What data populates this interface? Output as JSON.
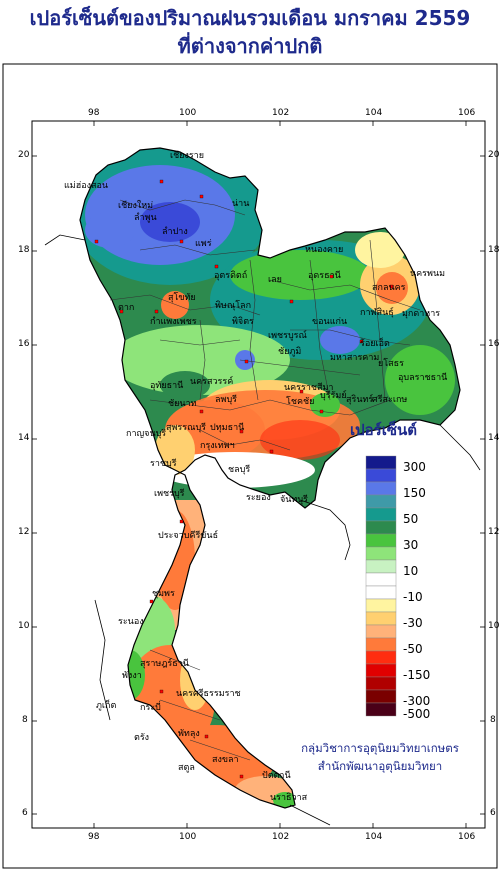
{
  "title_line1": "เปอร์เซ็นต์ของปริมาณฝนรวมเดือน มกราคม 2559",
  "title_line2": "ที่ต่างจากค่าปกติ",
  "axes": {
    "lon_ticks": [
      "98",
      "100",
      "102",
      "104",
      "106"
    ],
    "lat_ticks": [
      "20",
      "18",
      "16",
      "14",
      "12",
      "10",
      "8",
      "6"
    ]
  },
  "legend": {
    "title": "เปอร์เซ็นต์",
    "classes": [
      {
        "label": "300",
        "color": "#141a8c"
      },
      {
        "label": "",
        "color": "#3a4ad8"
      },
      {
        "label": "150",
        "color": "#5a78e8"
      },
      {
        "label": "",
        "color": "#3f9aa8"
      },
      {
        "label": "50",
        "color": "#159a8e"
      },
      {
        "label": "",
        "color": "#2d8a4e"
      },
      {
        "label": "30",
        "color": "#49c43e"
      },
      {
        "label": "",
        "color": "#8ee47a"
      },
      {
        "label": "10",
        "color": "#c8f2c2"
      },
      {
        "label": "",
        "color": "#ffffff"
      },
      {
        "label": "-10",
        "color": "#ffffff"
      },
      {
        "label": "",
        "color": "#fff4a0"
      },
      {
        "label": "-30",
        "color": "#ffd070"
      },
      {
        "label": "",
        "color": "#ffb27a"
      },
      {
        "label": "-50",
        "color": "#ff7a3a"
      },
      {
        "label": "",
        "color": "#ff2d10"
      },
      {
        "label": "-150",
        "color": "#e00000"
      },
      {
        "label": "",
        "color": "#b00000"
      },
      {
        "label": "-300",
        "color": "#7a0000"
      },
      {
        "label": "-500",
        "color": "#4a0018"
      }
    ]
  },
  "credits": {
    "line1": "กลุ่มวิชาการอุตุนิยมวิทยาเกษตร",
    "line2": "สำนักพัฒนาอุตุนิยมวิทยา"
  },
  "place_labels": [
    "เชียงราย",
    "แม่ฮ่องสอน",
    "เชียงใหม่",
    "ลำพูน",
    "ลำปาง",
    "น่าน",
    "แพร่",
    "อุตรดิตถ์",
    "สุโขทัย",
    "พิษณุโลก",
    "ตาก",
    "กำแพงเพชร",
    "พิจิตร",
    "เพชรบูรณ์",
    "เลย",
    "หนองคาย",
    "อุดรธานี",
    "สกลนคร",
    "นครพนม",
    "กาฬสินธุ์",
    "มุกดาหาร",
    "ขอนแก่น",
    "ชัยภูมิ",
    "มหาสารคาม",
    "ร้อยเอ็ด",
    "ยโสธร",
    "อุบลราชธานี",
    "นครสวรรค์",
    "อุทัยธานี",
    "ชัยนาท",
    "ลพบุรี",
    "นครราชสีมา",
    "บุรีรัมย์",
    "สุรินทร์",
    "ศรีสะเกษ",
    "โชคชัย",
    "กาญจนบุรี",
    "สุพรรณบุรี",
    "ปทุมธานี",
    "กรุงเทพฯ",
    "ชลบุรี",
    "ระยอง",
    "จันทบุรี",
    "ราชบุรี",
    "เพชรบุรี",
    "ประจวบคีรีขันธ์",
    "ชุมพร",
    "ระนอง",
    "สุราษฎร์ธานี",
    "นครศรีธรรมราช",
    "พังงา",
    "ภูเก็ต",
    "กระบี่",
    "ตรัง",
    "พัทลุง",
    "สงขลา",
    "สตูล",
    "ปัตตานี",
    "นราธิวาส"
  ]
}
